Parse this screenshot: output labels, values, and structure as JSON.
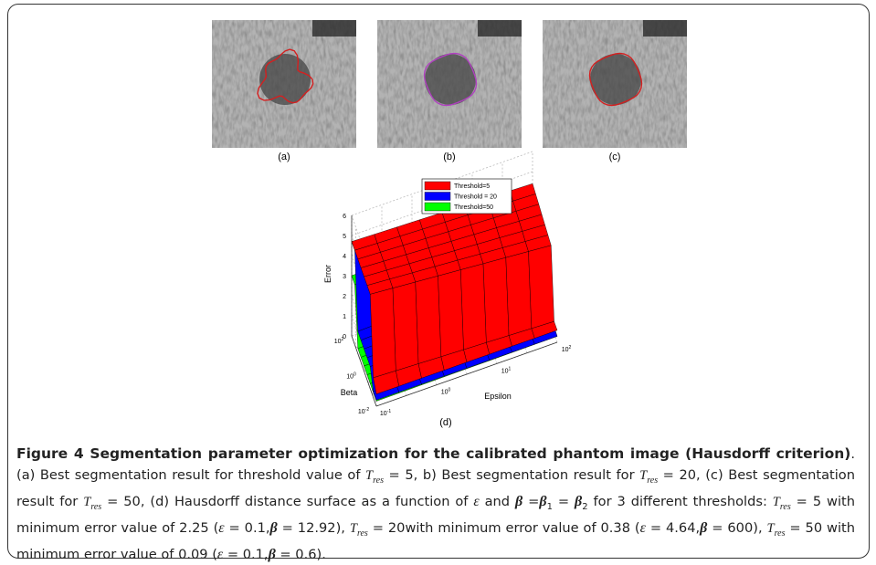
{
  "panels": [
    {
      "label": "(a)",
      "contour_color": "#d42020"
    },
    {
      "label": "(b)",
      "contour_color": "#b040c0"
    },
    {
      "label": "(c)",
      "contour_color": "#d42020"
    }
  ],
  "plot": {
    "label": "(d)",
    "z_label": "Error",
    "beta_label": "Beta",
    "epsilon_label": "Epsilon",
    "z_ticks": [
      "0",
      "1",
      "2",
      "3",
      "4",
      "5",
      "6"
    ],
    "beta_ticks": [
      {
        "base": "10",
        "exp": "2"
      },
      {
        "base": "10",
        "exp": "0"
      },
      {
        "base": "10",
        "exp": "-2"
      }
    ],
    "epsilon_ticks": [
      {
        "base": "10",
        "exp": "-1"
      },
      {
        "base": "10",
        "exp": "0"
      },
      {
        "base": "10",
        "exp": "1"
      },
      {
        "base": "10",
        "exp": "2"
      }
    ],
    "legend": [
      {
        "name": "Threshold=5",
        "color": "#ff0000"
      },
      {
        "name": "Threshold = 20",
        "color": "#0000ff"
      },
      {
        "name": "Threshold=50",
        "color": "#00ff00"
      }
    ]
  },
  "caption": {
    "title": "Figure 4 Segmentation parameter optimization for the calibrated phantom image (Hausdorff criterion)",
    "body": [
      {
        "kind": "plain",
        "text": ". (a) Best segmentation result for threshold value of "
      },
      {
        "kind": "var",
        "text": "T",
        "sub": "res"
      },
      {
        "kind": "plain",
        "text": " = 5, b) Best segmentation result for "
      },
      {
        "kind": "var",
        "text": "T",
        "sub": "res"
      },
      {
        "kind": "plain",
        "text": " = 20, (c) Best segmentation result for "
      },
      {
        "kind": "var",
        "text": "T",
        "sub": "res"
      },
      {
        "kind": "plain",
        "text": " = 50, (d) Hausdorff distance surface as a function of "
      },
      {
        "kind": "greek",
        "text": "ε"
      },
      {
        "kind": "plain",
        "text": " and "
      },
      {
        "kind": "bgreek",
        "text": "β"
      },
      {
        "kind": "plain",
        "text": " ="
      },
      {
        "kind": "bgreek",
        "text": "β",
        "sub": "1"
      },
      {
        "kind": "plain",
        "text": " = "
      },
      {
        "kind": "bgreek",
        "text": "β",
        "sub": "2"
      },
      {
        "kind": "plain",
        "text": " for 3 different thresholds: "
      },
      {
        "kind": "var",
        "text": "T",
        "sub": "res"
      },
      {
        "kind": "plain",
        "text": " = 5 with minimum error value of 2.25 ("
      },
      {
        "kind": "greek",
        "text": "ε"
      },
      {
        "kind": "plain",
        "text": " = 0.1,"
      },
      {
        "kind": "bgreek",
        "text": "β"
      },
      {
        "kind": "plain",
        "text": " = 12.92), "
      },
      {
        "kind": "var",
        "text": "T",
        "sub": "res"
      },
      {
        "kind": "plain",
        "text": " = 20with minimum error value of 0.38 ("
      },
      {
        "kind": "greek",
        "text": "ε"
      },
      {
        "kind": "plain",
        "text": " = 4.64,"
      },
      {
        "kind": "bgreek",
        "text": "β"
      },
      {
        "kind": "plain",
        "text": " = 600), "
      },
      {
        "kind": "var",
        "text": "T",
        "sub": "res"
      },
      {
        "kind": "plain",
        "text": " = 50 with minimum error value of 0.09 ("
      },
      {
        "kind": "greek",
        "text": "ε"
      },
      {
        "kind": "plain",
        "text": " = 0.1,"
      },
      {
        "kind": "bgreek",
        "text": "β"
      },
      {
        "kind": "plain",
        "text": " = 0.6)."
      }
    ]
  }
}
